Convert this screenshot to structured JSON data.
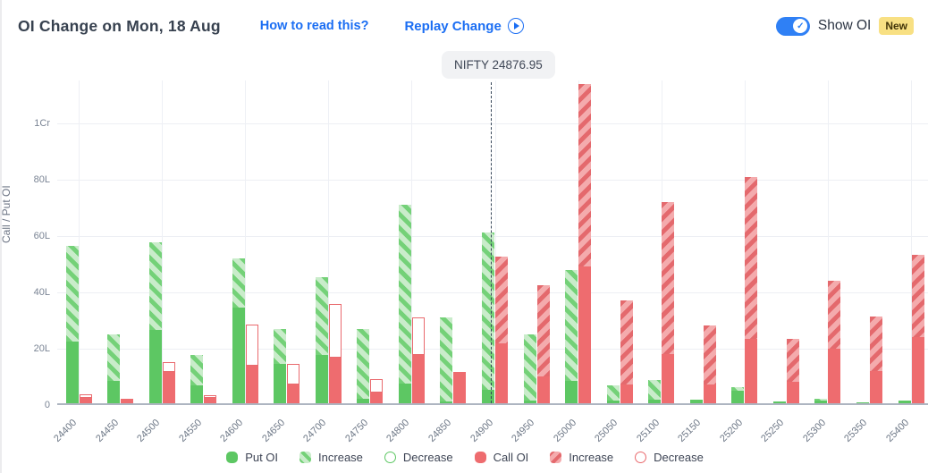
{
  "header": {
    "title": "OI Change on Mon, 18 Aug",
    "how_to_link": "How to read this?",
    "replay_label": "Replay Change",
    "show_oi_label": "Show OI",
    "new_badge": "New"
  },
  "tooltip": {
    "label": "NIFTY 24876.95"
  },
  "chart_data": {
    "type": "bar",
    "title": "OI Change on Mon, 18 Aug",
    "ylabel": "Call / Put OI",
    "y_unit": "lakh",
    "ylim": [
      0,
      115
    ],
    "grid": "horizontal + vertical every 100 strike",
    "legend_position": "bottom-center",
    "nifty_spot": 24876.95,
    "nifty_label": "NIFTY 24876.95",
    "y_ticks": [
      {
        "label": "0",
        "value": 0
      },
      {
        "label": "20L",
        "value": 20
      },
      {
        "label": "40L",
        "value": 40
      },
      {
        "label": "60L",
        "value": 60
      },
      {
        "label": "80L",
        "value": 80
      },
      {
        "label": "1Cr",
        "value": 100
      }
    ],
    "legend": [
      {
        "label": "Put OI",
        "marker": "put-solid"
      },
      {
        "label": "Increase",
        "marker": "put-inc"
      },
      {
        "label": "Decrease",
        "marker": "put-dec"
      },
      {
        "label": "Call OI",
        "marker": "call-solid"
      },
      {
        "label": "Increase",
        "marker": "call-inc"
      },
      {
        "label": "Decrease",
        "marker": "call-dec"
      }
    ],
    "colors": {
      "put_solid": "#5dc763",
      "put_hatch_bg": "#c9ecca",
      "put_hatch_stripe": "#74d178",
      "call_solid": "#ee6c6f",
      "call_hatch_bg": "#f4abad",
      "call_hatch_stripe": "#e4696d",
      "decrease_outline_call": "#e96a6e",
      "decrease_outline_put": "#5dc763",
      "link_blue": "#1b6ef3",
      "toggle_blue": "#2f80f5",
      "badge_yellow": "#f8e083"
    },
    "bars": [
      {
        "strike": "24400",
        "put_oi": 22.0,
        "put_change": 34.0,
        "put_change_type": "increase",
        "call_oi": 2.0,
        "call_change": 1.2,
        "call_change_type": "decrease"
      },
      {
        "strike": "24450",
        "put_oi": 8.0,
        "put_change": 16.5,
        "put_change_type": "increase",
        "call_oi": 1.5,
        "call_change": 0,
        "call_change_type": "none"
      },
      {
        "strike": "24500",
        "put_oi": 26.0,
        "put_change": 31.0,
        "put_change_type": "increase",
        "call_oi": 11.0,
        "call_change": 3.6,
        "call_change_type": "decrease"
      },
      {
        "strike": "24550",
        "put_oi": 6.5,
        "put_change": 10.5,
        "put_change_type": "increase",
        "call_oi": 1.8,
        "call_change": 1.0,
        "call_change_type": "decrease"
      },
      {
        "strike": "24600",
        "put_oi": 34.0,
        "put_change": 17.5,
        "put_change_type": "increase",
        "call_oi": 13.2,
        "call_change": 14.6,
        "call_change_type": "decrease"
      },
      {
        "strike": "24650",
        "put_oi": 14.0,
        "put_change": 12.5,
        "put_change_type": "increase",
        "call_oi": 6.7,
        "call_change": 7.3,
        "call_change_type": "decrease"
      },
      {
        "strike": "24700",
        "put_oi": 17.0,
        "put_change": 27.8,
        "put_change_type": "increase",
        "call_oi": 16.1,
        "call_change": 19.1,
        "call_change_type": "decrease"
      },
      {
        "strike": "24750",
        "put_oi": 1.5,
        "put_change": 25.0,
        "put_change_type": "increase",
        "call_oi": 3.7,
        "call_change": 4.8,
        "call_change_type": "decrease"
      },
      {
        "strike": "24800",
        "put_oi": 7.0,
        "put_change": 63.5,
        "put_change_type": "increase",
        "call_oi": 17.0,
        "call_change": 13.5,
        "call_change_type": "decrease"
      },
      {
        "strike": "24850",
        "put_oi": 0.7,
        "put_change": 29.8,
        "put_change_type": "increase",
        "call_oi": 11.0,
        "call_change": 0,
        "call_change_type": "none"
      },
      {
        "strike": "24900",
        "put_oi": 4.8,
        "put_change": 55.7,
        "put_change_type": "increase",
        "call_oi": 21.3,
        "call_change": 30.7,
        "call_change_type": "increase"
      },
      {
        "strike": "24950",
        "put_oi": 1.0,
        "put_change": 23.5,
        "put_change_type": "increase",
        "call_oi": 9.5,
        "call_change": 32.5,
        "call_change_type": "increase"
      },
      {
        "strike": "25000",
        "put_oi": 7.8,
        "put_change": 39.5,
        "put_change_type": "increase",
        "call_oi": 48.5,
        "call_change": 64.8,
        "call_change_type": "increase"
      },
      {
        "strike": "25050",
        "put_oi": 1.0,
        "put_change": 5.3,
        "put_change_type": "increase",
        "call_oi": 6.6,
        "call_change": 29.9,
        "call_change_type": "increase"
      },
      {
        "strike": "25100",
        "put_oi": 1.4,
        "put_change": 7.0,
        "put_change_type": "increase",
        "call_oi": 17.5,
        "call_change": 53.9,
        "call_change_type": "increase"
      },
      {
        "strike": "25150",
        "put_oi": 1.2,
        "put_change": 0,
        "put_change_type": "none",
        "call_oi": 6.8,
        "call_change": 20.7,
        "call_change_type": "increase"
      },
      {
        "strike": "25200",
        "put_oi": 4.6,
        "put_change": 1.2,
        "put_change_type": "increase",
        "call_oi": 22.8,
        "call_change": 57.6,
        "call_change_type": "increase"
      },
      {
        "strike": "25250",
        "put_oi": 0.5,
        "put_change": 0,
        "put_change_type": "none",
        "call_oi": 7.5,
        "call_change": 15.5,
        "call_change_type": "increase"
      },
      {
        "strike": "25300",
        "put_oi": 1.0,
        "put_change": 0.5,
        "put_change_type": "increase",
        "call_oi": 19.3,
        "call_change": 24.2,
        "call_change_type": "increase"
      },
      {
        "strike": "25350",
        "put_oi": 0.4,
        "put_change": 0,
        "put_change_type": "none",
        "call_oi": 11.3,
        "call_change": 19.5,
        "call_change_type": "increase"
      },
      {
        "strike": "25400",
        "put_oi": 0.8,
        "put_change": 0.3,
        "put_change_type": "increase",
        "call_oi": 23.5,
        "call_change": 29.2,
        "call_change_type": "increase"
      }
    ]
  }
}
